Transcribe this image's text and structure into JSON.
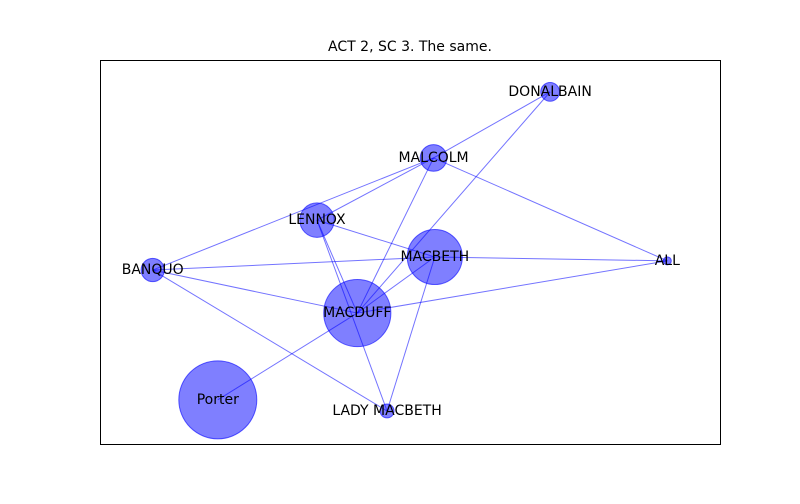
{
  "title": "ACT 2, SC 3. The same.",
  "colors": {
    "node_fill": "#0000ff",
    "node_opacity": 0.5,
    "edge_stroke": "#0000ff",
    "edge_opacity": 0.55,
    "frame": "#000000",
    "background": "#ffffff"
  },
  "chart_data": {
    "type": "network",
    "nodes": [
      {
        "id": "DONALBAIN",
        "label": "DONALBAIN",
        "x": 0.726,
        "y": 0.917,
        "weight": 1
      },
      {
        "id": "MALCOLM",
        "label": "MALCOLM",
        "x": 0.538,
        "y": 0.745,
        "weight": 3
      },
      {
        "id": "LENNOX",
        "label": "LENNOX",
        "x": 0.35,
        "y": 0.583,
        "weight": 6
      },
      {
        "id": "MACBETH",
        "label": "MACBETH",
        "x": 0.54,
        "y": 0.487,
        "weight": 19
      },
      {
        "id": "ALL",
        "label": "ALL",
        "x": 0.915,
        "y": 0.477,
        "weight": 0
      },
      {
        "id": "BANQUO",
        "label": "BANQUO",
        "x": 0.085,
        "y": 0.453,
        "weight": 2
      },
      {
        "id": "MACDUFF",
        "label": "MACDUFF",
        "x": 0.415,
        "y": 0.341,
        "weight": 30
      },
      {
        "id": "LADY MACBETH",
        "label": "LADY MACBETH",
        "x": 0.463,
        "y": 0.086,
        "weight": 0.3
      },
      {
        "id": "Porter",
        "label": "Porter",
        "x": 0.19,
        "y": 0.115,
        "weight": 42
      }
    ],
    "edges": [
      [
        "DONALBAIN",
        "MALCOLM"
      ],
      [
        "DONALBAIN",
        "MACDUFF"
      ],
      [
        "MALCOLM",
        "LENNOX"
      ],
      [
        "MALCOLM",
        "BANQUO"
      ],
      [
        "MALCOLM",
        "MACDUFF"
      ],
      [
        "MALCOLM",
        "ALL"
      ],
      [
        "LENNOX",
        "MACBETH"
      ],
      [
        "LENNOX",
        "MACDUFF"
      ],
      [
        "LENNOX",
        "LADY MACBETH"
      ],
      [
        "BANQUO",
        "MACBETH"
      ],
      [
        "BANQUO",
        "MACDUFF"
      ],
      [
        "BANQUO",
        "LADY MACBETH"
      ],
      [
        "MACBETH",
        "ALL"
      ],
      [
        "MACBETH",
        "MACDUFF"
      ],
      [
        "MACBETH",
        "LADY MACBETH"
      ],
      [
        "MACDUFF",
        "ALL"
      ],
      [
        "MACDUFF",
        "Porter"
      ]
    ]
  }
}
